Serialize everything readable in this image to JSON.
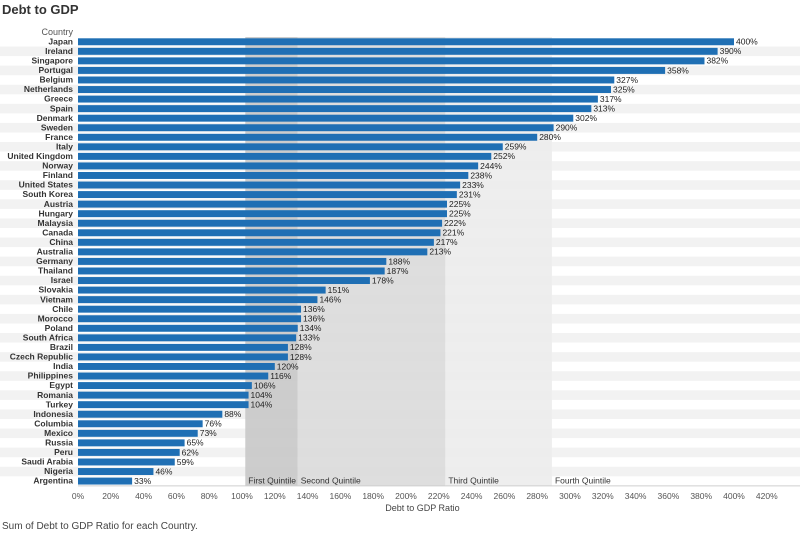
{
  "title": "Debt to GDP",
  "column_header": "Country",
  "footer": "Sum of Debt to GDP Ratio for each Country.",
  "colors": {
    "bar": "#1f6fb4",
    "band1": "#c8c8c8",
    "band2": "#dadada",
    "band3": "#ececec",
    "stripe": "#f2f2f2"
  },
  "chart_data": {
    "type": "bar",
    "orientation": "horizontal",
    "xlabel": "Debt to GDP Ratio",
    "xlim": [
      0,
      420
    ],
    "x_ticks": [
      "0%",
      "20%",
      "40%",
      "60%",
      "80%",
      "100%",
      "120%",
      "140%",
      "160%",
      "180%",
      "200%",
      "220%",
      "240%",
      "260%",
      "280%",
      "300%",
      "320%",
      "340%",
      "360%",
      "380%",
      "400%",
      "420%"
    ],
    "categories": [
      "Japan",
      "Ireland",
      "Singapore",
      "Portugal",
      "Belgium",
      "Netherlands",
      "Greece",
      "Spain",
      "Denmark",
      "Sweden",
      "France",
      "Italy",
      "United Kingdom",
      "Norway",
      "Finland",
      "United States",
      "South Korea",
      "Austria",
      "Hungary",
      "Malaysia",
      "Canada",
      "China",
      "Australia",
      "Germany",
      "Thailand",
      "Israel",
      "Slovakia",
      "Vietnam",
      "Chile",
      "Morocco",
      "Poland",
      "South Africa",
      "Brazil",
      "Czech Republic",
      "India",
      "Philippines",
      "Egypt",
      "Romania",
      "Turkey",
      "Indonesia",
      "Columbia",
      "Mexico",
      "Russia",
      "Peru",
      "Saudi Arabia",
      "Nigeria",
      "Argentina"
    ],
    "values": [
      400,
      390,
      382,
      358,
      327,
      325,
      317,
      313,
      302,
      290,
      280,
      259,
      252,
      244,
      238,
      233,
      231,
      225,
      225,
      222,
      221,
      217,
      213,
      188,
      187,
      178,
      151,
      146,
      136,
      136,
      134,
      133,
      128,
      128,
      120,
      116,
      106,
      104,
      104,
      88,
      76,
      73,
      65,
      62,
      59,
      46,
      33
    ],
    "value_labels": [
      "400%",
      "390%",
      "382%",
      "358%",
      "327%",
      "325%",
      "317%",
      "313%",
      "302%",
      "290%",
      "280%",
      "259%",
      "252%",
      "244%",
      "238%",
      "233%",
      "231%",
      "225%",
      "225%",
      "222%",
      "221%",
      "217%",
      "213%",
      "188%",
      "187%",
      "178%",
      "151%",
      "146%",
      "136%",
      "136%",
      "134%",
      "133%",
      "128%",
      "128%",
      "120%",
      "116%",
      "106%",
      "104%",
      "104%",
      "88%",
      "76%",
      "73%",
      "65%",
      "62%",
      "59%",
      "46%",
      "33%"
    ],
    "bands": [
      {
        "label": "First Quintile",
        "from": 102,
        "to": 134
      },
      {
        "label": "Second Quintile",
        "from": 134,
        "to": 224
      },
      {
        "label": "Third Quintile",
        "from": 224,
        "to": 289
      },
      {
        "label": "Fourth Quintile",
        "from": 289,
        "to": 420
      }
    ]
  }
}
